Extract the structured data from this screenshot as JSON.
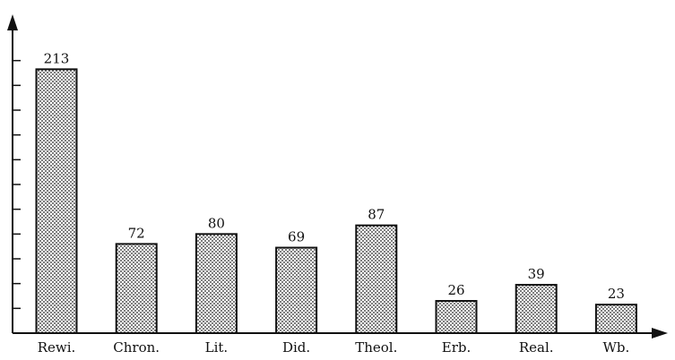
{
  "chart_data": {
    "type": "bar",
    "categories": [
      "Rewi.",
      "Chron.",
      "Lit.",
      "Did.",
      "Theol.",
      "Erb.",
      "Real.",
      "Wb."
    ],
    "values": [
      213,
      72,
      80,
      69,
      87,
      26,
      39,
      23
    ],
    "title": "",
    "xlabel": "",
    "ylabel": "",
    "ylim": [
      0,
      240
    ],
    "yticks_step": 20,
    "y_tick_labels_shown": false,
    "grid": false,
    "legend": "none",
    "bar_fill": "dotted",
    "colors": {
      "bar_stroke": "#111111",
      "axis": "#111111",
      "background": "#ffffff"
    }
  }
}
